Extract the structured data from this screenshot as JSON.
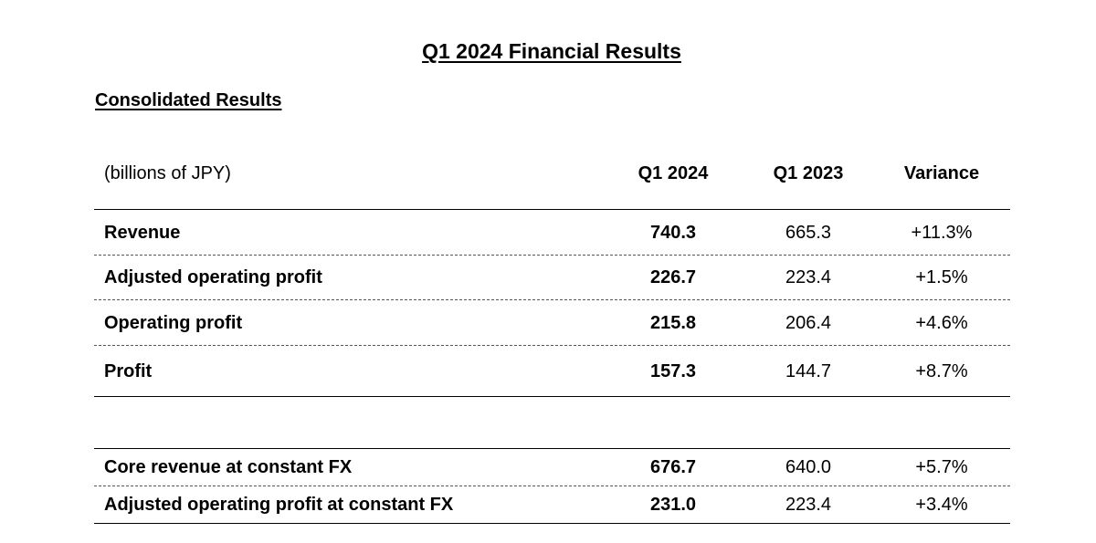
{
  "document": {
    "title": "Q1 2024 Financial Results",
    "section_heading": "Consolidated Results"
  },
  "table": {
    "unit_label": "(billions of JPY)",
    "columns": [
      "Q1 2024",
      "Q1 2023",
      "Variance"
    ],
    "rows": [
      {
        "label": "Revenue",
        "q1_2024": "740.3",
        "q1_2023": "665.3",
        "variance": "+11.3%"
      },
      {
        "label": "Adjusted operating profit",
        "q1_2024": "226.7",
        "q1_2023": "223.4",
        "variance": "+1.5%"
      },
      {
        "label": "Operating profit",
        "q1_2024": "215.8",
        "q1_2023": "206.4",
        "variance": "+4.6%"
      },
      {
        "label": "Profit",
        "q1_2024": "157.3",
        "q1_2023": "144.7",
        "variance": "+8.7%"
      }
    ],
    "constant_fx_rows": [
      {
        "label": "Core revenue at constant FX",
        "q1_2024": "676.7",
        "q1_2023": "640.0",
        "variance": "+5.7%"
      },
      {
        "label": "Adjusted operating profit at constant FX",
        "q1_2024": "231.0",
        "q1_2023": "223.4",
        "variance": "+3.4%"
      }
    ]
  }
}
